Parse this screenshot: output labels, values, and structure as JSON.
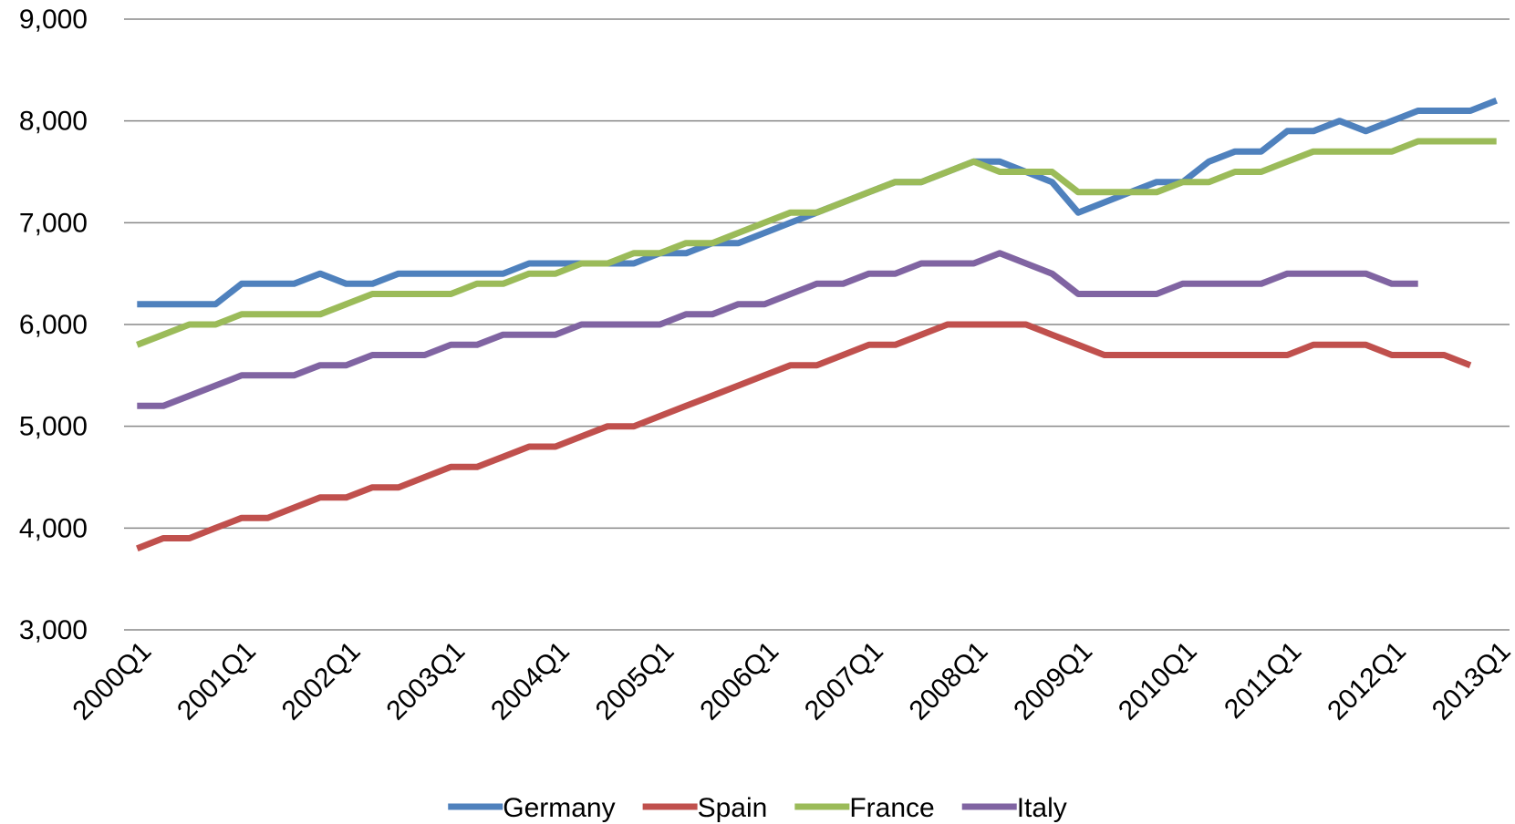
{
  "chart_data": {
    "type": "line",
    "categories": [
      "2000Q1",
      null,
      null,
      null,
      "2001Q1",
      null,
      null,
      null,
      "2002Q1",
      null,
      null,
      null,
      "2003Q1",
      null,
      null,
      null,
      "2004Q1",
      null,
      null,
      null,
      "2005Q1",
      null,
      null,
      null,
      "2006Q1",
      null,
      null,
      null,
      "2007Q1",
      null,
      null,
      null,
      "2008Q1",
      null,
      null,
      null,
      "2009Q1",
      null,
      null,
      null,
      "2010Q1",
      null,
      null,
      null,
      "2011Q1",
      null,
      null,
      null,
      "2012Q1",
      null,
      null,
      null,
      "2013Q1"
    ],
    "series": [
      {
        "name": "Germany",
        "color": "#4f81bd",
        "values": [
          6200,
          6200,
          6200,
          6200,
          6400,
          6400,
          6400,
          6500,
          6400,
          6400,
          6500,
          6500,
          6500,
          6500,
          6500,
          6600,
          6600,
          6600,
          6600,
          6600,
          6700,
          6700,
          6800,
          6800,
          6900,
          7000,
          7100,
          7200,
          7300,
          7400,
          7400,
          7500,
          7600,
          7600,
          7500,
          7400,
          7100,
          7200,
          7300,
          7400,
          7400,
          7600,
          7700,
          7700,
          7900,
          7900,
          8000,
          7900,
          8000,
          8100,
          8100,
          8100,
          8200
        ]
      },
      {
        "name": "Spain",
        "color": "#c0504d",
        "values": [
          3800,
          3900,
          3900,
          4000,
          4100,
          4100,
          4200,
          4300,
          4300,
          4400,
          4400,
          4500,
          4600,
          4600,
          4700,
          4800,
          4800,
          4900,
          5000,
          5000,
          5100,
          5200,
          5300,
          5400,
          5500,
          5600,
          5600,
          5700,
          5800,
          5800,
          5900,
          6000,
          6000,
          6000,
          6000,
          5900,
          5800,
          5700,
          5700,
          5700,
          5700,
          5700,
          5700,
          5700,
          5700,
          5800,
          5800,
          5800,
          5700,
          5700,
          5700,
          5600,
          null
        ]
      },
      {
        "name": "France",
        "color": "#9bbb59",
        "values": [
          5800,
          5900,
          6000,
          6000,
          6100,
          6100,
          6100,
          6100,
          6200,
          6300,
          6300,
          6300,
          6300,
          6400,
          6400,
          6500,
          6500,
          6600,
          6600,
          6700,
          6700,
          6800,
          6800,
          6900,
          7000,
          7100,
          7100,
          7200,
          7300,
          7400,
          7400,
          7500,
          7600,
          7500,
          7500,
          7500,
          7300,
          7300,
          7300,
          7300,
          7400,
          7400,
          7500,
          7500,
          7600,
          7700,
          7700,
          7700,
          7700,
          7800,
          7800,
          7800,
          7800
        ]
      },
      {
        "name": "Italy",
        "color": "#8064a2",
        "values": [
          5200,
          5200,
          5300,
          5400,
          5500,
          5500,
          5500,
          5600,
          5600,
          5700,
          5700,
          5700,
          5800,
          5800,
          5900,
          5900,
          5900,
          6000,
          6000,
          6000,
          6000,
          6100,
          6100,
          6200,
          6200,
          6300,
          6400,
          6400,
          6500,
          6500,
          6600,
          6600,
          6600,
          6700,
          6600,
          6500,
          6300,
          6300,
          6300,
          6300,
          6400,
          6400,
          6400,
          6400,
          6500,
          6500,
          6500,
          6500,
          6400,
          6400,
          null,
          null,
          null
        ]
      }
    ],
    "ylim": [
      3000,
      9000
    ],
    "yticks": [
      {
        "value": 3000,
        "label": "3,000"
      },
      {
        "value": 4000,
        "label": "4,000"
      },
      {
        "value": 5000,
        "label": "5,000"
      },
      {
        "value": 6000,
        "label": "6,000"
      },
      {
        "value": 7000,
        "label": "7,000"
      },
      {
        "value": 8000,
        "label": "8,000"
      },
      {
        "value": 9000,
        "label": "9,000"
      }
    ],
    "grid": true,
    "legend": "bottom"
  }
}
